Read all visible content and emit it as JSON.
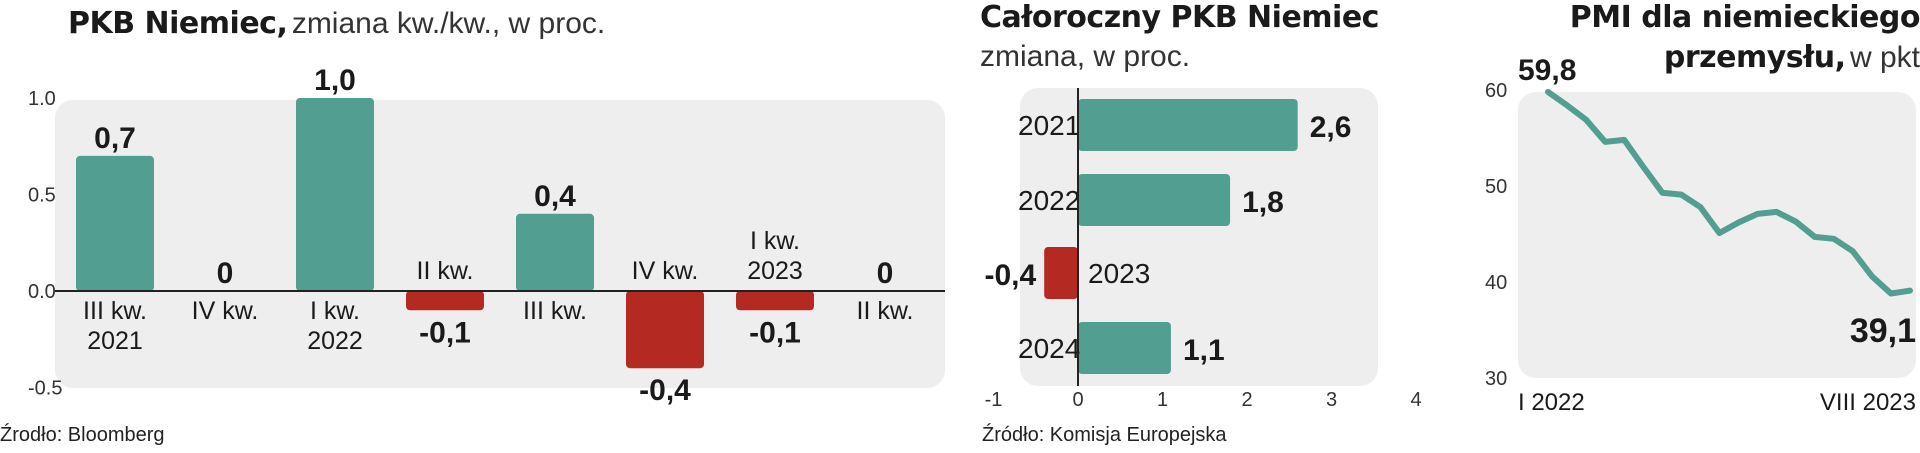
{
  "colors": {
    "teal": "#529e90",
    "red": "#b42a22",
    "panel_bg": "#eeeeee"
  },
  "chart_data": [
    {
      "type": "bar",
      "title": "PKB Niemiec,",
      "subtitle": "zmiana kw./kw., w proc.",
      "source": "Źrodło: Bloomberg",
      "categories": [
        [
          "III kw.",
          "2021"
        ],
        [
          "IV kw."
        ],
        [
          "I kw.",
          "2022"
        ],
        [
          "II kw."
        ],
        [
          "III kw."
        ],
        [
          "IV kw."
        ],
        [
          "I kw.",
          "2023"
        ],
        [
          "II kw."
        ]
      ],
      "values": [
        0.7,
        0,
        1.0,
        -0.1,
        0.4,
        -0.4,
        -0.1,
        0
      ],
      "value_labels": [
        "0,7",
        "0",
        "1,0",
        "-0,1",
        "0,4",
        "-0,4",
        "-0,1",
        "0"
      ],
      "yticks": [
        "1.0",
        "0.5",
        "0.0",
        "-0.5"
      ],
      "ylim": [
        -0.5,
        1.0
      ]
    },
    {
      "type": "bar",
      "orientation": "horizontal",
      "title": "Całoroczny PKB Niemiec",
      "subtitle": "zmiana, w proc.",
      "source": "Źródło: Komisja Europejska",
      "categories": [
        "2021",
        "2022",
        "2023",
        "2024"
      ],
      "values": [
        2.6,
        1.8,
        -0.4,
        1.1
      ],
      "value_labels": [
        "2,6",
        "1,8",
        "-0,4",
        "1,1"
      ],
      "xticks": [
        "-1",
        "0",
        "1",
        "2",
        "3",
        "4"
      ],
      "xlim": [
        -1,
        4
      ]
    },
    {
      "type": "line",
      "title_line1": "PMI dla niemieckiego",
      "title_line2": "przemysłu,",
      "title_unit": "w pkt",
      "x_start_label": "I 2022",
      "x_end_label": "VIII 2023",
      "yticks": [
        "60",
        "50",
        "40",
        "30"
      ],
      "ylim": [
        30,
        60
      ],
      "values": [
        59.8,
        58.4,
        56.9,
        54.6,
        54.8,
        52.0,
        49.3,
        49.1,
        47.8,
        45.1,
        46.2,
        47.1,
        47.3,
        46.3,
        44.7,
        44.5,
        43.2,
        40.6,
        38.8,
        39.1
      ],
      "first_label": "59,8",
      "last_label": "39,1"
    }
  ]
}
